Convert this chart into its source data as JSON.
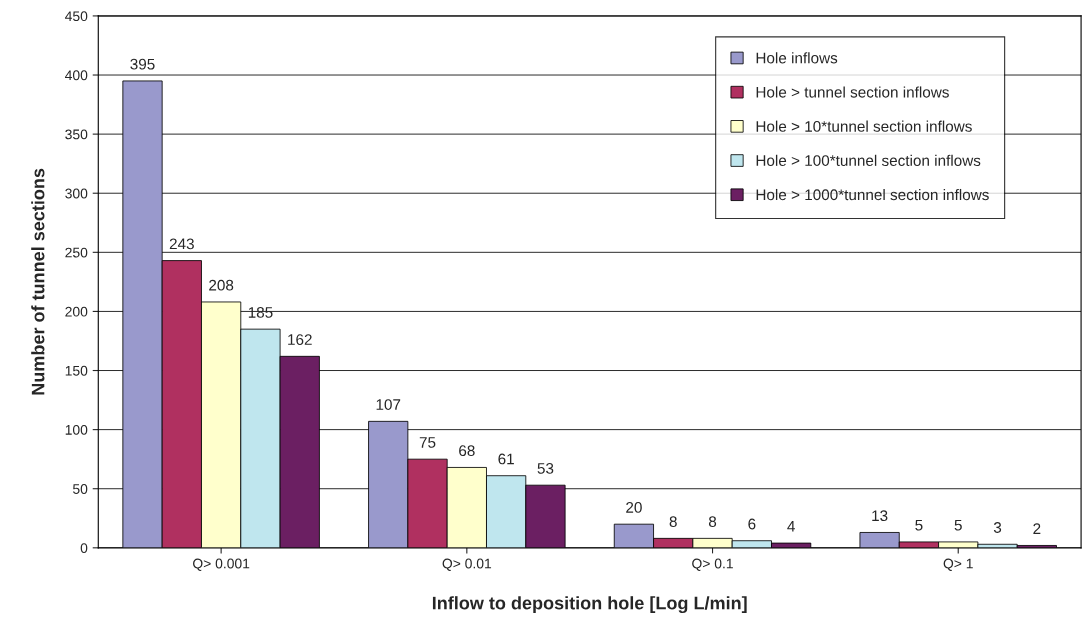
{
  "chart_data": {
    "type": "bar",
    "xlabel": "Inflow to deposition hole [Log L/min]",
    "ylabel": "Number of tunnel sections",
    "categories": [
      "Q> 0.001",
      "Q> 0.01",
      "Q> 0.1",
      "Q> 1"
    ],
    "series": [
      {
        "name": "Hole inflows",
        "color": "#9999cc",
        "values": [
          395,
          107,
          20,
          13
        ]
      },
      {
        "name": "Hole > tunnel section inflows",
        "color": "#b03060",
        "values": [
          243,
          75,
          8,
          5
        ]
      },
      {
        "name": "Hole > 10*tunnel section inflows",
        "color": "#ffffcc",
        "values": [
          208,
          68,
          8,
          5
        ]
      },
      {
        "name": "Hole > 100*tunnel section inflows",
        "color": "#bfe6ee",
        "values": [
          185,
          61,
          6,
          3
        ]
      },
      {
        "name": "Hole > 1000*tunnel section inflows",
        "color": "#6b1f62",
        "values": [
          162,
          53,
          4,
          2
        ]
      }
    ],
    "ylim": [
      0,
      450
    ],
    "yticks": [
      0,
      50,
      100,
      150,
      200,
      250,
      300,
      350,
      400,
      450
    ],
    "grid": "y",
    "legend": "top right",
    "data_labels": true
  }
}
